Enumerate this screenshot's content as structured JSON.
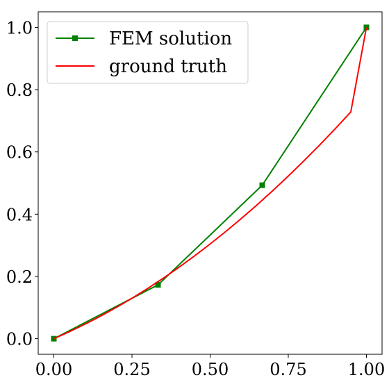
{
  "chart_data": {
    "type": "line",
    "title": "",
    "xlabel": "",
    "ylabel": "",
    "xlim": [
      -0.05,
      1.05
    ],
    "ylim": [
      -0.05,
      1.05
    ],
    "xticks": [
      0.0,
      0.25,
      0.5,
      0.75,
      1.0
    ],
    "xtick_labels": [
      "0.00",
      "0.25",
      "0.50",
      "0.75",
      "1.00"
    ],
    "yticks": [
      0.0,
      0.2,
      0.4,
      0.6,
      0.8,
      1.0
    ],
    "ytick_labels": [
      "0.0",
      "0.2",
      "0.4",
      "0.6",
      "0.8",
      "1.0"
    ],
    "grid": false,
    "legend_position": "top-left",
    "series": [
      {
        "name": "FEM solution",
        "color": "#008000",
        "marker": "square",
        "x": [
          0.0,
          0.3333,
          0.6667,
          1.0
        ],
        "y": [
          0.0,
          0.173,
          0.493,
          1.0
        ]
      },
      {
        "name": "ground truth",
        "color": "#ff0000",
        "marker": "none",
        "x": [
          0.0,
          0.05,
          0.1,
          0.15,
          0.2,
          0.25,
          0.3,
          0.35,
          0.4,
          0.45,
          0.5,
          0.55,
          0.6,
          0.65,
          0.7,
          0.75,
          0.8,
          0.85,
          0.9,
          0.95,
          1.0
        ],
        "y": [
          0.0,
          0.0225,
          0.0467,
          0.0727,
          0.1005,
          0.13,
          0.1613,
          0.1943,
          0.2292,
          0.2658,
          0.3042,
          0.3443,
          0.3862,
          0.4298,
          0.4752,
          0.5223,
          0.5712,
          0.6218,
          0.6742,
          0.7283,
          1.0
        ]
      }
    ]
  }
}
